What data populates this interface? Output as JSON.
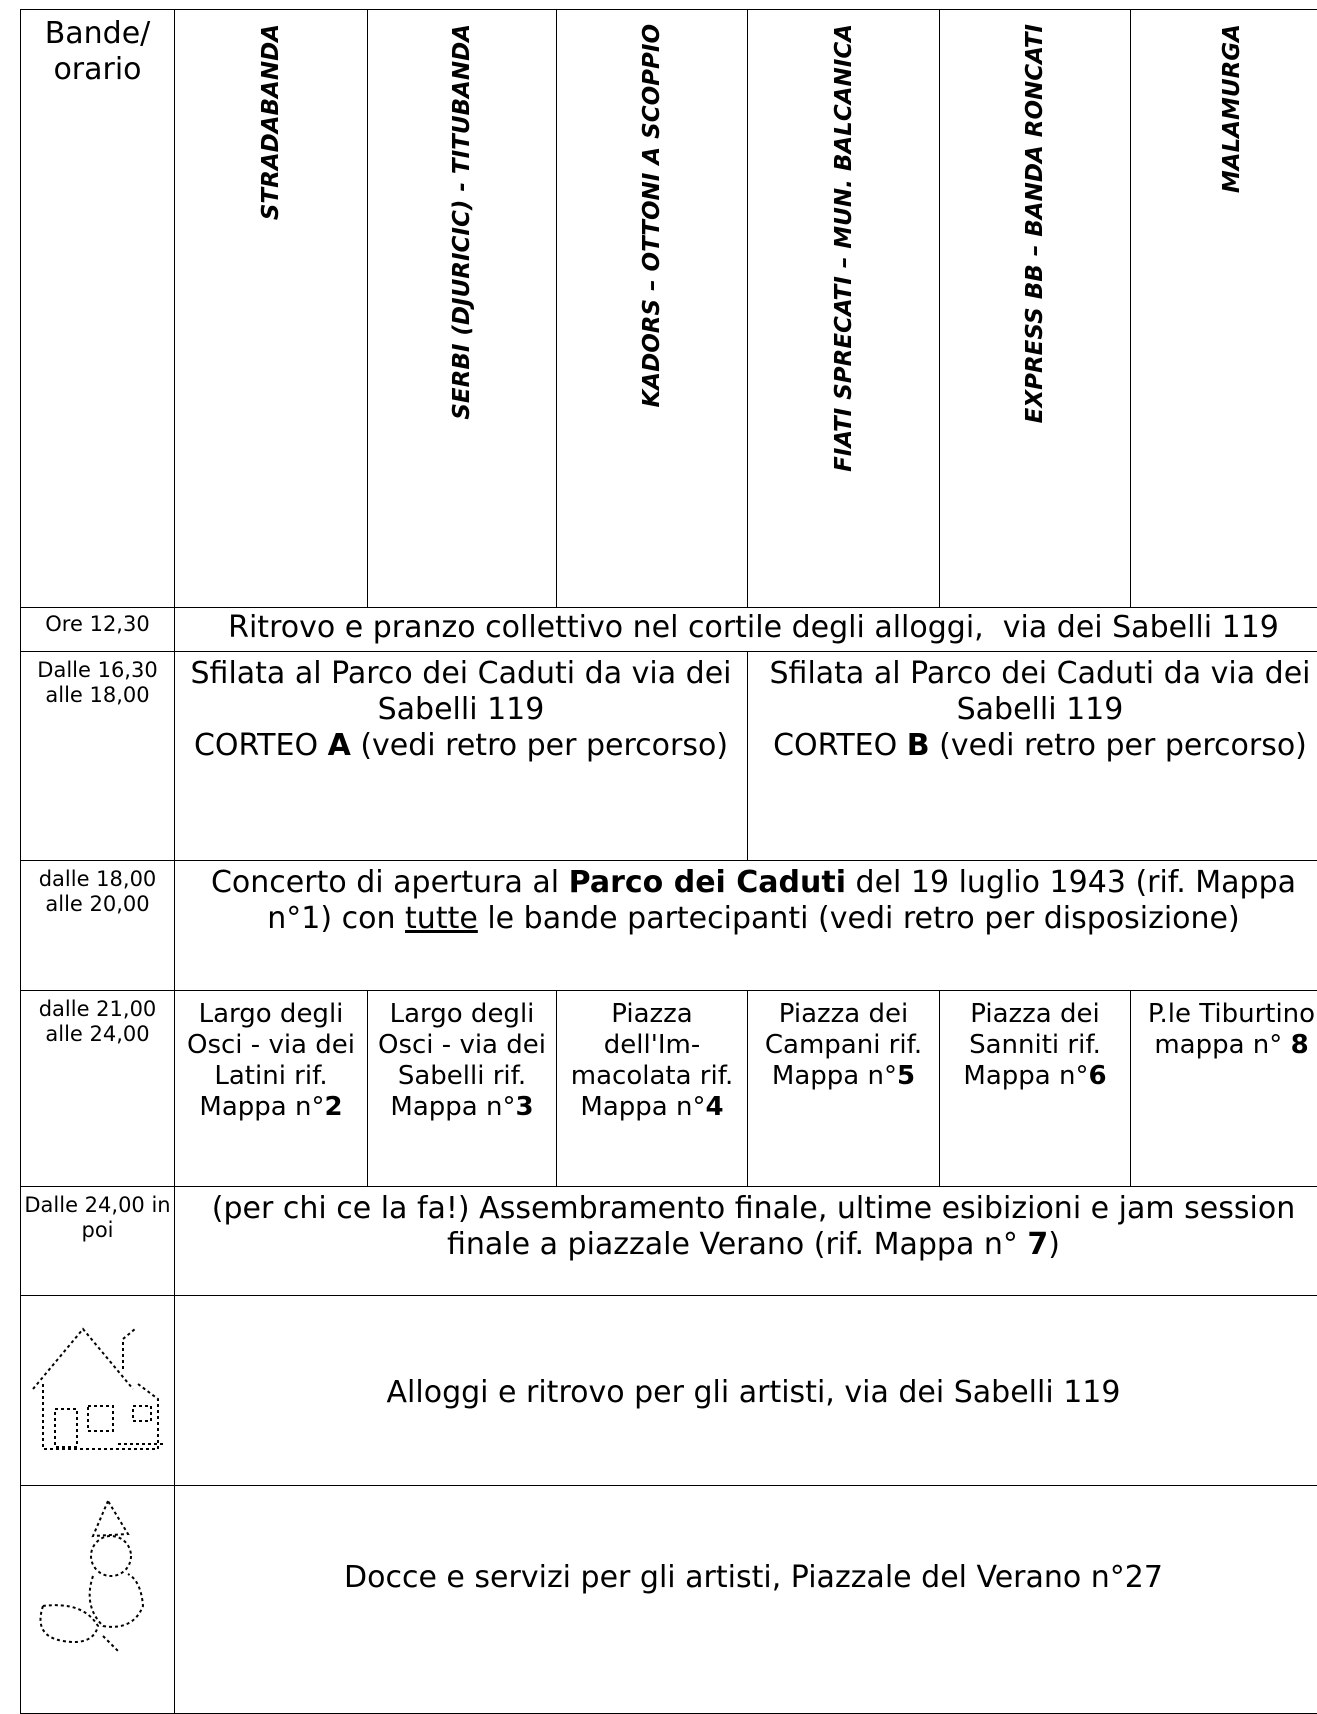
{
  "header": {
    "corner": "Bande/ orario",
    "bands": [
      "STRADABANDA",
      "SERBI (DJURICIC) - TITUBANDA",
      "KADORS – OTTONI A SCOPPIO",
      "FIATI SPRECATI – MUN. BALCANICA",
      "EXPRESS BB – BANDA RONCATI",
      "MALAMURGA"
    ]
  },
  "rows": [
    {
      "time": "Ore 12,30",
      "cells": [
        [
          [
            "Ritrovo e pranzo collettivo nel cortile degli alloggi,  via dei Sabelli 119"
          ]
        ]
      ]
    },
    {
      "time": "Dalle 16,30 alle 18,00",
      "cells": [
        [
          [
            "Sfilata al Parco dei Caduti da via dei Sabelli 119"
          ],
          [
            "CORTEO ",
            {
              "text": "A",
              "bold": true
            },
            " (vedi retro per percorso)"
          ]
        ],
        [
          [
            "Sfilata al Parco dei Caduti da via dei Sabelli 119"
          ],
          [
            "CORTEO ",
            {
              "text": "B",
              "bold": true
            },
            " (vedi retro per percorso)"
          ]
        ]
      ]
    },
    {
      "time": "dalle 18,00 alle 20,00",
      "cells": [
        [
          [
            "Concerto di apertura al ",
            {
              "text": "Parco dei Caduti",
              "bold": true
            },
            " del 19 luglio 1943 (rif. Mappa n°1) con ",
            {
              "text": "tutte",
              "underline": true
            },
            " le bande partecipanti (vedi retro per disposizione)"
          ]
        ]
      ]
    },
    {
      "time": "dalle 21,00 alle 24,00",
      "cells": [
        [
          [
            "Largo degli Osci - via dei Latini rif. Mappa n°",
            {
              "text": "2",
              "bold": true
            }
          ]
        ],
        [
          [
            "Largo degli Osci - via dei Sabelli rif. Mappa n°",
            {
              "text": "3",
              "bold": true
            }
          ]
        ],
        [
          [
            "Piazza dell'Im-macolata rif. Mappa n°",
            {
              "text": "4",
              "bold": true
            }
          ]
        ],
        [
          [
            "Piazza dei Campani rif. Mappa n°",
            {
              "text": "5",
              "bold": true
            }
          ]
        ],
        [
          [
            "Piazza dei Sanniti rif. Mappa n°",
            {
              "text": "6",
              "bold": true
            }
          ]
        ],
        [
          [
            "P.le Tiburtino mappa n° ",
            {
              "text": "8",
              "bold": true
            }
          ]
        ]
      ]
    },
    {
      "time": "Dalle 24,00 in poi",
      "cells": [
        [
          [
            "(per chi ce la fa!) Assembramento finale, ultime esibizioni e jam session finale a piazzale Verano (rif. Mappa n° ",
            {
              "text": "7",
              "bold": true
            },
            ")"
          ]
        ]
      ]
    },
    {
      "cells": [
        [
          [
            "Alloggi e ritrovo per gli artisti, via dei Sabelli 119"
          ]
        ]
      ]
    },
    {
      "cells": [
        [
          [
            "Docce e servizi per gli artisti, Piazzale del Verano n°27"
          ]
        ]
      ]
    }
  ]
}
